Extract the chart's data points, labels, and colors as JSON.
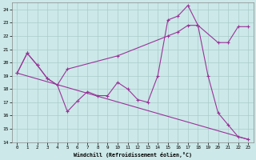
{
  "xlabel": "Windchill (Refroidissement éolien,°C)",
  "background_color": "#cce8e8",
  "grid_color": "#aacccc",
  "line_color": "#993399",
  "xlim": [
    -0.5,
    23.5
  ],
  "ylim": [
    14,
    24.5
  ],
  "yticks": [
    14,
    15,
    16,
    17,
    18,
    19,
    20,
    21,
    22,
    23,
    24
  ],
  "xticks": [
    0,
    1,
    2,
    3,
    4,
    5,
    6,
    7,
    8,
    9,
    10,
    11,
    12,
    13,
    14,
    15,
    16,
    17,
    18,
    19,
    20,
    21,
    22,
    23
  ],
  "series1_x": [
    0,
    1,
    2,
    3,
    4,
    5,
    6,
    7,
    8,
    9,
    10,
    11,
    12,
    13,
    14,
    15,
    16,
    17,
    18,
    19,
    20,
    21,
    22,
    23
  ],
  "series1_y": [
    19.2,
    20.7,
    19.8,
    18.8,
    18.3,
    16.3,
    17.1,
    17.8,
    17.5,
    17.5,
    18.5,
    18.0,
    17.2,
    17.0,
    19.0,
    23.2,
    23.5,
    24.3,
    22.8,
    19.0,
    16.2,
    15.3,
    14.4,
    14.2
  ],
  "series2_x": [
    0,
    1,
    2,
    3,
    4,
    5,
    10,
    15,
    16,
    17,
    18,
    20,
    21,
    22,
    23
  ],
  "series2_y": [
    19.2,
    20.7,
    19.8,
    18.8,
    18.3,
    19.5,
    20.5,
    22.0,
    22.3,
    22.8,
    22.8,
    21.5,
    21.5,
    22.7,
    22.7
  ],
  "series3_x": [
    0,
    23
  ],
  "series3_y": [
    19.2,
    14.2
  ]
}
